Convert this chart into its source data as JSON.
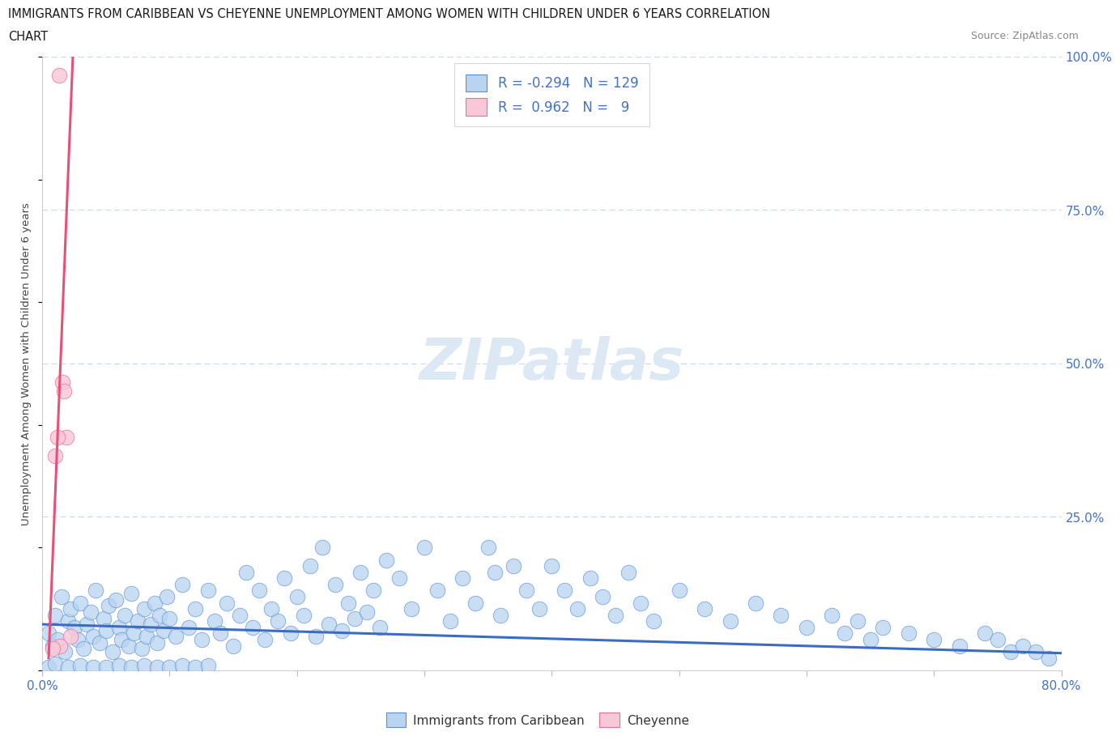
{
  "title_line1": "IMMIGRANTS FROM CARIBBEAN VS CHEYENNE UNEMPLOYMENT AMONG WOMEN WITH CHILDREN UNDER 6 YEARS CORRELATION",
  "title_line2": "CHART",
  "source": "Source: ZipAtlas.com",
  "ylabel": "Unemployment Among Women with Children Under 6 years",
  "xlim": [
    0.0,
    0.8
  ],
  "ylim": [
    0.0,
    1.0
  ],
  "xticks": [
    0.0,
    0.1,
    0.2,
    0.3,
    0.4,
    0.5,
    0.6,
    0.7,
    0.8
  ],
  "xtick_labels": [
    "0.0%",
    "",
    "",
    "",
    "",
    "",
    "",
    "",
    "80.0%"
  ],
  "ytick_labels": [
    "",
    "25.0%",
    "50.0%",
    "75.0%",
    "100.0%"
  ],
  "yticks": [
    0.0,
    0.25,
    0.5,
    0.75,
    1.0
  ],
  "blue_color": "#b8d4f0",
  "blue_edge_color": "#5b8ed6",
  "blue_line_color": "#3b6cc4",
  "pink_color": "#f8c8d8",
  "pink_edge_color": "#e8709a",
  "pink_line_color": "#e8507a",
  "text_color": "#4472c4",
  "background_color": "#ffffff",
  "grid_color": "#c8d8ec",
  "watermark_color": "#dce8f4",
  "blue_scatter_x": [
    0.005,
    0.008,
    0.01,
    0.012,
    0.015,
    0.018,
    0.02,
    0.022,
    0.025,
    0.028,
    0.03,
    0.032,
    0.035,
    0.038,
    0.04,
    0.042,
    0.045,
    0.048,
    0.05,
    0.052,
    0.055,
    0.058,
    0.06,
    0.062,
    0.065,
    0.068,
    0.07,
    0.072,
    0.075,
    0.078,
    0.08,
    0.082,
    0.085,
    0.088,
    0.09,
    0.092,
    0.095,
    0.098,
    0.1,
    0.105,
    0.11,
    0.115,
    0.12,
    0.125,
    0.13,
    0.135,
    0.14,
    0.145,
    0.15,
    0.155,
    0.16,
    0.165,
    0.17,
    0.175,
    0.18,
    0.185,
    0.19,
    0.195,
    0.2,
    0.205,
    0.21,
    0.215,
    0.22,
    0.225,
    0.23,
    0.235,
    0.24,
    0.245,
    0.25,
    0.255,
    0.26,
    0.265,
    0.27,
    0.28,
    0.29,
    0.3,
    0.31,
    0.32,
    0.33,
    0.34,
    0.35,
    0.355,
    0.36,
    0.37,
    0.38,
    0.39,
    0.4,
    0.41,
    0.42,
    0.43,
    0.44,
    0.45,
    0.46,
    0.47,
    0.48,
    0.5,
    0.52,
    0.54,
    0.56,
    0.58,
    0.6,
    0.62,
    0.63,
    0.64,
    0.65,
    0.66,
    0.68,
    0.7,
    0.72,
    0.74,
    0.75,
    0.76,
    0.77,
    0.78,
    0.79,
    0.005,
    0.01,
    0.02,
    0.03,
    0.04,
    0.05,
    0.06,
    0.07,
    0.08,
    0.09,
    0.1,
    0.11,
    0.12,
    0.13
  ],
  "blue_scatter_y": [
    0.06,
    0.04,
    0.09,
    0.05,
    0.12,
    0.03,
    0.08,
    0.1,
    0.07,
    0.05,
    0.11,
    0.035,
    0.075,
    0.095,
    0.055,
    0.13,
    0.045,
    0.085,
    0.065,
    0.105,
    0.03,
    0.115,
    0.07,
    0.05,
    0.09,
    0.04,
    0.125,
    0.06,
    0.08,
    0.035,
    0.1,
    0.055,
    0.075,
    0.11,
    0.045,
    0.09,
    0.065,
    0.12,
    0.085,
    0.055,
    0.14,
    0.07,
    0.1,
    0.05,
    0.13,
    0.08,
    0.06,
    0.11,
    0.04,
    0.09,
    0.16,
    0.07,
    0.13,
    0.05,
    0.1,
    0.08,
    0.15,
    0.06,
    0.12,
    0.09,
    0.17,
    0.055,
    0.2,
    0.075,
    0.14,
    0.065,
    0.11,
    0.085,
    0.16,
    0.095,
    0.13,
    0.07,
    0.18,
    0.15,
    0.1,
    0.2,
    0.13,
    0.08,
    0.15,
    0.11,
    0.2,
    0.16,
    0.09,
    0.17,
    0.13,
    0.1,
    0.17,
    0.13,
    0.1,
    0.15,
    0.12,
    0.09,
    0.16,
    0.11,
    0.08,
    0.13,
    0.1,
    0.08,
    0.11,
    0.09,
    0.07,
    0.09,
    0.06,
    0.08,
    0.05,
    0.07,
    0.06,
    0.05,
    0.04,
    0.06,
    0.05,
    0.03,
    0.04,
    0.03,
    0.02,
    0.005,
    0.01,
    0.005,
    0.008,
    0.005,
    0.005,
    0.008,
    0.005,
    0.008,
    0.005,
    0.005,
    0.008,
    0.005,
    0.008
  ],
  "pink_scatter_x": [
    0.013,
    0.016,
    0.017,
    0.019,
    0.01,
    0.012,
    0.022,
    0.014,
    0.008
  ],
  "pink_scatter_y": [
    0.97,
    0.47,
    0.455,
    0.38,
    0.35,
    0.38,
    0.055,
    0.04,
    0.035
  ],
  "blue_trend_x": [
    0.0,
    0.8
  ],
  "blue_trend_y": [
    0.075,
    0.028
  ],
  "pink_trend_x": [
    0.005,
    0.024
  ],
  "pink_trend_y": [
    0.02,
    1.0
  ]
}
